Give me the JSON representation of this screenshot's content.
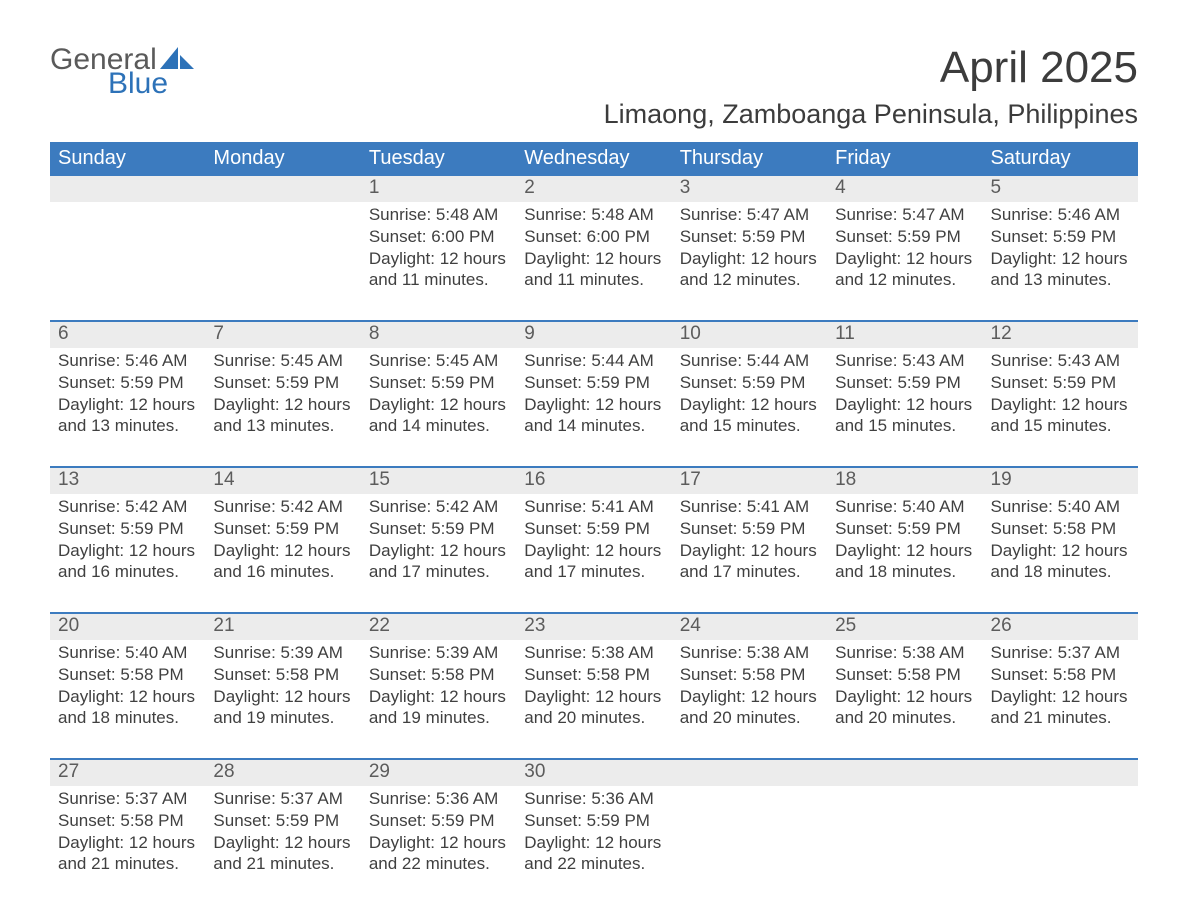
{
  "logo": {
    "word1": "General",
    "word2": "Blue",
    "sail_color": "#2d72b8"
  },
  "title": {
    "month": "April 2025",
    "location": "Limaong, Zamboanga Peninsula, Philippines"
  },
  "colors": {
    "header_bg": "#3c7bbf",
    "header_text": "#ffffff",
    "daynum_bg": "#ececec",
    "week_border": "#3c7bbf",
    "body_text": "#404040",
    "page_bg": "#ffffff",
    "logo_grey": "#5a5a5a",
    "logo_blue": "#2d72b8"
  },
  "typography": {
    "month_fontsize": 44,
    "location_fontsize": 27,
    "dow_fontsize": 20,
    "daynum_fontsize": 19,
    "body_fontsize": 17
  },
  "days_of_week": [
    "Sunday",
    "Monday",
    "Tuesday",
    "Wednesday",
    "Thursday",
    "Friday",
    "Saturday"
  ],
  "weeks": [
    {
      "nums": [
        "",
        "",
        "1",
        "2",
        "3",
        "4",
        "5"
      ],
      "cells": [
        {
          "sunrise": "",
          "sunset": "",
          "daylight1": "",
          "daylight2": ""
        },
        {
          "sunrise": "",
          "sunset": "",
          "daylight1": "",
          "daylight2": ""
        },
        {
          "sunrise": "Sunrise: 5:48 AM",
          "sunset": "Sunset: 6:00 PM",
          "daylight1": "Daylight: 12 hours",
          "daylight2": "and 11 minutes."
        },
        {
          "sunrise": "Sunrise: 5:48 AM",
          "sunset": "Sunset: 6:00 PM",
          "daylight1": "Daylight: 12 hours",
          "daylight2": "and 11 minutes."
        },
        {
          "sunrise": "Sunrise: 5:47 AM",
          "sunset": "Sunset: 5:59 PM",
          "daylight1": "Daylight: 12 hours",
          "daylight2": "and 12 minutes."
        },
        {
          "sunrise": "Sunrise: 5:47 AM",
          "sunset": "Sunset: 5:59 PM",
          "daylight1": "Daylight: 12 hours",
          "daylight2": "and 12 minutes."
        },
        {
          "sunrise": "Sunrise: 5:46 AM",
          "sunset": "Sunset: 5:59 PM",
          "daylight1": "Daylight: 12 hours",
          "daylight2": "and 13 minutes."
        }
      ]
    },
    {
      "nums": [
        "6",
        "7",
        "8",
        "9",
        "10",
        "11",
        "12"
      ],
      "cells": [
        {
          "sunrise": "Sunrise: 5:46 AM",
          "sunset": "Sunset: 5:59 PM",
          "daylight1": "Daylight: 12 hours",
          "daylight2": "and 13 minutes."
        },
        {
          "sunrise": "Sunrise: 5:45 AM",
          "sunset": "Sunset: 5:59 PM",
          "daylight1": "Daylight: 12 hours",
          "daylight2": "and 13 minutes."
        },
        {
          "sunrise": "Sunrise: 5:45 AM",
          "sunset": "Sunset: 5:59 PM",
          "daylight1": "Daylight: 12 hours",
          "daylight2": "and 14 minutes."
        },
        {
          "sunrise": "Sunrise: 5:44 AM",
          "sunset": "Sunset: 5:59 PM",
          "daylight1": "Daylight: 12 hours",
          "daylight2": "and 14 minutes."
        },
        {
          "sunrise": "Sunrise: 5:44 AM",
          "sunset": "Sunset: 5:59 PM",
          "daylight1": "Daylight: 12 hours",
          "daylight2": "and 15 minutes."
        },
        {
          "sunrise": "Sunrise: 5:43 AM",
          "sunset": "Sunset: 5:59 PM",
          "daylight1": "Daylight: 12 hours",
          "daylight2": "and 15 minutes."
        },
        {
          "sunrise": "Sunrise: 5:43 AM",
          "sunset": "Sunset: 5:59 PM",
          "daylight1": "Daylight: 12 hours",
          "daylight2": "and 15 minutes."
        }
      ]
    },
    {
      "nums": [
        "13",
        "14",
        "15",
        "16",
        "17",
        "18",
        "19"
      ],
      "cells": [
        {
          "sunrise": "Sunrise: 5:42 AM",
          "sunset": "Sunset: 5:59 PM",
          "daylight1": "Daylight: 12 hours",
          "daylight2": "and 16 minutes."
        },
        {
          "sunrise": "Sunrise: 5:42 AM",
          "sunset": "Sunset: 5:59 PM",
          "daylight1": "Daylight: 12 hours",
          "daylight2": "and 16 minutes."
        },
        {
          "sunrise": "Sunrise: 5:42 AM",
          "sunset": "Sunset: 5:59 PM",
          "daylight1": "Daylight: 12 hours",
          "daylight2": "and 17 minutes."
        },
        {
          "sunrise": "Sunrise: 5:41 AM",
          "sunset": "Sunset: 5:59 PM",
          "daylight1": "Daylight: 12 hours",
          "daylight2": "and 17 minutes."
        },
        {
          "sunrise": "Sunrise: 5:41 AM",
          "sunset": "Sunset: 5:59 PM",
          "daylight1": "Daylight: 12 hours",
          "daylight2": "and 17 minutes."
        },
        {
          "sunrise": "Sunrise: 5:40 AM",
          "sunset": "Sunset: 5:59 PM",
          "daylight1": "Daylight: 12 hours",
          "daylight2": "and 18 minutes."
        },
        {
          "sunrise": "Sunrise: 5:40 AM",
          "sunset": "Sunset: 5:58 PM",
          "daylight1": "Daylight: 12 hours",
          "daylight2": "and 18 minutes."
        }
      ]
    },
    {
      "nums": [
        "20",
        "21",
        "22",
        "23",
        "24",
        "25",
        "26"
      ],
      "cells": [
        {
          "sunrise": "Sunrise: 5:40 AM",
          "sunset": "Sunset: 5:58 PM",
          "daylight1": "Daylight: 12 hours",
          "daylight2": "and 18 minutes."
        },
        {
          "sunrise": "Sunrise: 5:39 AM",
          "sunset": "Sunset: 5:58 PM",
          "daylight1": "Daylight: 12 hours",
          "daylight2": "and 19 minutes."
        },
        {
          "sunrise": "Sunrise: 5:39 AM",
          "sunset": "Sunset: 5:58 PM",
          "daylight1": "Daylight: 12 hours",
          "daylight2": "and 19 minutes."
        },
        {
          "sunrise": "Sunrise: 5:38 AM",
          "sunset": "Sunset: 5:58 PM",
          "daylight1": "Daylight: 12 hours",
          "daylight2": "and 20 minutes."
        },
        {
          "sunrise": "Sunrise: 5:38 AM",
          "sunset": "Sunset: 5:58 PM",
          "daylight1": "Daylight: 12 hours",
          "daylight2": "and 20 minutes."
        },
        {
          "sunrise": "Sunrise: 5:38 AM",
          "sunset": "Sunset: 5:58 PM",
          "daylight1": "Daylight: 12 hours",
          "daylight2": "and 20 minutes."
        },
        {
          "sunrise": "Sunrise: 5:37 AM",
          "sunset": "Sunset: 5:58 PM",
          "daylight1": "Daylight: 12 hours",
          "daylight2": "and 21 minutes."
        }
      ]
    },
    {
      "nums": [
        "27",
        "28",
        "29",
        "30",
        "",
        "",
        ""
      ],
      "cells": [
        {
          "sunrise": "Sunrise: 5:37 AM",
          "sunset": "Sunset: 5:58 PM",
          "daylight1": "Daylight: 12 hours",
          "daylight2": "and 21 minutes."
        },
        {
          "sunrise": "Sunrise: 5:37 AM",
          "sunset": "Sunset: 5:59 PM",
          "daylight1": "Daylight: 12 hours",
          "daylight2": "and 21 minutes."
        },
        {
          "sunrise": "Sunrise: 5:36 AM",
          "sunset": "Sunset: 5:59 PM",
          "daylight1": "Daylight: 12 hours",
          "daylight2": "and 22 minutes."
        },
        {
          "sunrise": "Sunrise: 5:36 AM",
          "sunset": "Sunset: 5:59 PM",
          "daylight1": "Daylight: 12 hours",
          "daylight2": "and 22 minutes."
        },
        {
          "sunrise": "",
          "sunset": "",
          "daylight1": "",
          "daylight2": ""
        },
        {
          "sunrise": "",
          "sunset": "",
          "daylight1": "",
          "daylight2": ""
        },
        {
          "sunrise": "",
          "sunset": "",
          "daylight1": "",
          "daylight2": ""
        }
      ]
    }
  ]
}
